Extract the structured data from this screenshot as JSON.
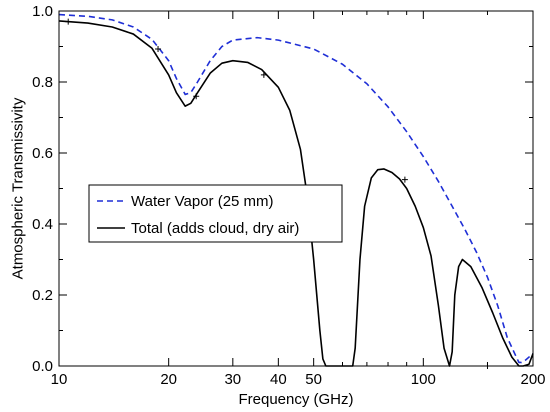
{
  "chart_data": {
    "type": "line",
    "xlabel": "Frequency (GHz)",
    "ylabel": "Atmospheric Transmissivity",
    "xscale": "log",
    "xlim": [
      10,
      200
    ],
    "ylim": [
      0,
      1.0
    ],
    "xticks": [
      10,
      20,
      30,
      40,
      50,
      100,
      200
    ],
    "xtick_labels": [
      "10",
      "20",
      "30",
      "40",
      "50",
      "100",
      "200"
    ],
    "yticks": [
      0,
      0.2,
      0.4,
      0.6,
      0.8,
      1.0
    ],
    "ytick_labels": [
      "0.0",
      "0.2",
      "0.4",
      "0.6",
      "0.8",
      "1.0"
    ],
    "grid": false,
    "legend_position": "center-left",
    "series": [
      {
        "name": "Water Vapor (25 mm)",
        "color": "#1f2fd6",
        "style": "dashed",
        "points": [
          [
            10,
            0.99
          ],
          [
            12,
            0.985
          ],
          [
            14,
            0.975
          ],
          [
            16,
            0.955
          ],
          [
            18,
            0.92
          ],
          [
            20,
            0.86
          ],
          [
            21,
            0.81
          ],
          [
            22.2,
            0.765
          ],
          [
            23,
            0.77
          ],
          [
            24,
            0.8
          ],
          [
            26,
            0.86
          ],
          [
            28,
            0.9
          ],
          [
            30,
            0.918
          ],
          [
            35,
            0.925
          ],
          [
            40,
            0.918
          ],
          [
            50,
            0.893
          ],
          [
            60,
            0.85
          ],
          [
            70,
            0.795
          ],
          [
            80,
            0.73
          ],
          [
            90,
            0.66
          ],
          [
            100,
            0.59
          ],
          [
            110,
            0.52
          ],
          [
            120,
            0.45
          ],
          [
            130,
            0.385
          ],
          [
            140,
            0.32
          ],
          [
            150,
            0.25
          ],
          [
            160,
            0.17
          ],
          [
            170,
            0.08
          ],
          [
            180,
            0.025
          ],
          [
            183,
            0.01
          ],
          [
            186,
            0.01
          ],
          [
            190,
            0.015
          ],
          [
            200,
            0.035
          ]
        ]
      },
      {
        "name": "Total (adds cloud, dry air)",
        "color": "#000000",
        "style": "solid",
        "points": [
          [
            10,
            0.972
          ],
          [
            12,
            0.966
          ],
          [
            14,
            0.955
          ],
          [
            16,
            0.935
          ],
          [
            18,
            0.895
          ],
          [
            20,
            0.82
          ],
          [
            21,
            0.77
          ],
          [
            22.2,
            0.732
          ],
          [
            23,
            0.74
          ],
          [
            24,
            0.77
          ],
          [
            26,
            0.825
          ],
          [
            28,
            0.853
          ],
          [
            30,
            0.86
          ],
          [
            33,
            0.855
          ],
          [
            36,
            0.835
          ],
          [
            40,
            0.785
          ],
          [
            43,
            0.72
          ],
          [
            46,
            0.61
          ],
          [
            48,
            0.48
          ],
          [
            50,
            0.3
          ],
          [
            52,
            0.1
          ],
          [
            53,
            0.02
          ],
          [
            54,
            0.0
          ],
          [
            60,
            0.0
          ],
          [
            64,
            0.0
          ],
          [
            65,
            0.05
          ],
          [
            67,
            0.3
          ],
          [
            69,
            0.45
          ],
          [
            72,
            0.53
          ],
          [
            75,
            0.553
          ],
          [
            78,
            0.555
          ],
          [
            82,
            0.545
          ],
          [
            86,
            0.527
          ],
          [
            90,
            0.5
          ],
          [
            95,
            0.45
          ],
          [
            100,
            0.39
          ],
          [
            105,
            0.31
          ],
          [
            110,
            0.17
          ],
          [
            114,
            0.05
          ],
          [
            118,
            0.0
          ],
          [
            120,
            0.04
          ],
          [
            122,
            0.2
          ],
          [
            125,
            0.28
          ],
          [
            128,
            0.3
          ],
          [
            135,
            0.28
          ],
          [
            145,
            0.22
          ],
          [
            155,
            0.15
          ],
          [
            165,
            0.08
          ],
          [
            175,
            0.025
          ],
          [
            183,
            0.0
          ],
          [
            188,
            0.0
          ],
          [
            195,
            0.005
          ],
          [
            200,
            0.035
          ]
        ]
      }
    ],
    "markers": [
      {
        "x": 10.6,
        "y": 0.97
      },
      {
        "x": 18.7,
        "y": 0.893
      },
      {
        "x": 23.8,
        "y": 0.76
      },
      {
        "x": 36.5,
        "y": 0.82
      },
      {
        "x": 89,
        "y": 0.525
      },
      {
        "x": 150,
        "y": 0.0
      }
    ]
  }
}
